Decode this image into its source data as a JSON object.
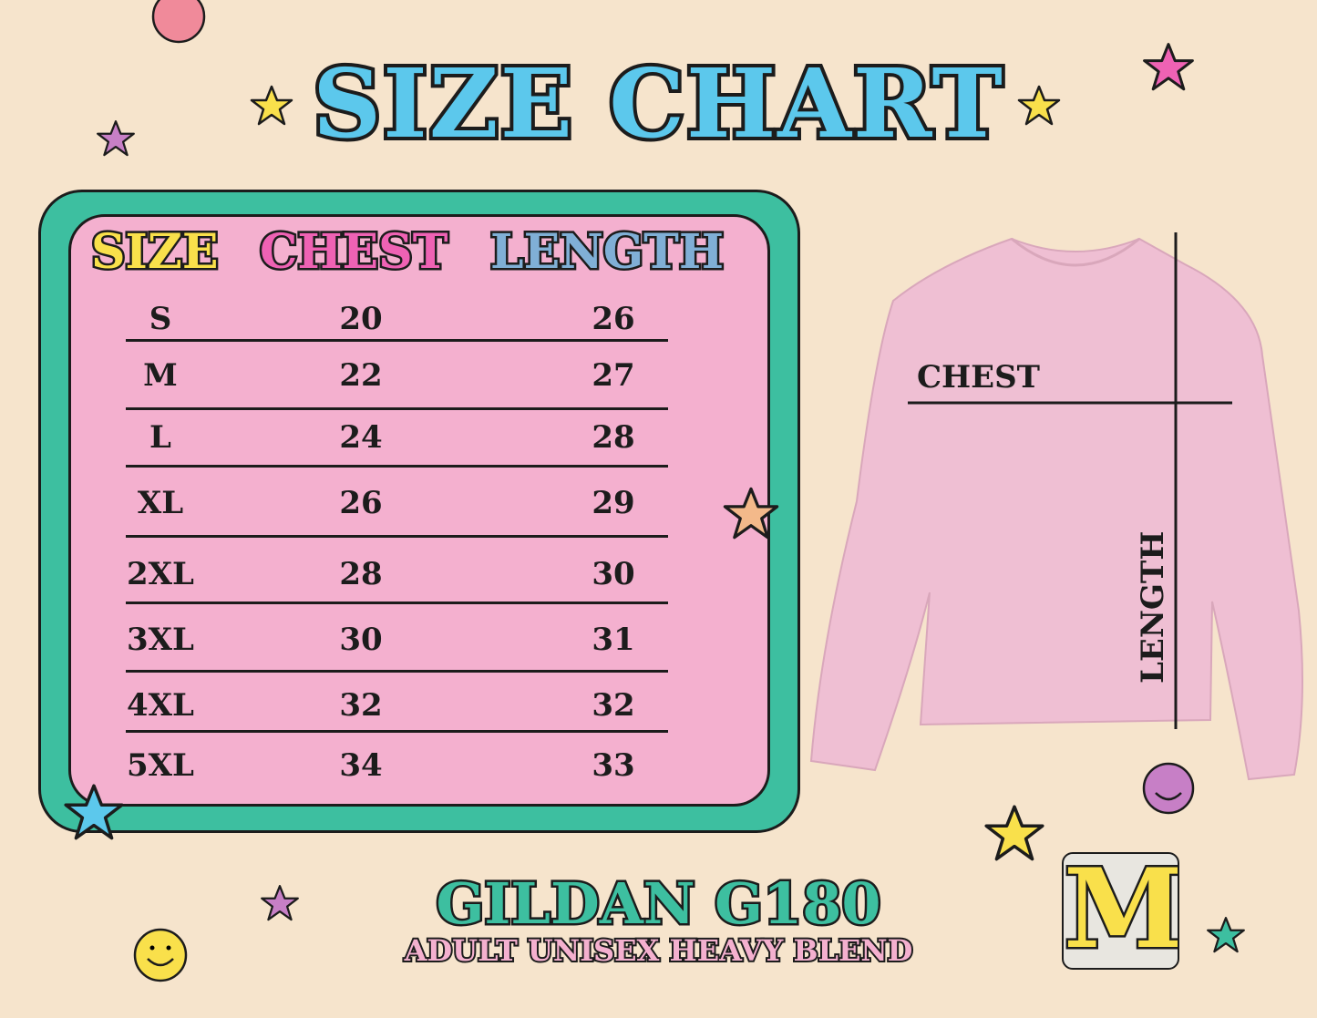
{
  "title": "SIZE CHART",
  "table": {
    "headers": {
      "size": "SIZE",
      "chest": "CHEST",
      "length": "LENGTH"
    },
    "header_colors": {
      "size": "#f9e04b",
      "chest": "#ef62b4",
      "length": "#80afd6"
    },
    "rows": [
      {
        "size": "S",
        "chest": "20",
        "length": "26"
      },
      {
        "size": "M",
        "chest": "22",
        "length": "27"
      },
      {
        "size": "L",
        "chest": "24",
        "length": "28"
      },
      {
        "size": "XL",
        "chest": "26",
        "length": "29"
      },
      {
        "size": "2XL",
        "chest": "28",
        "length": "30"
      },
      {
        "size": "3XL",
        "chest": "30",
        "length": "31"
      },
      {
        "size": "4XL",
        "chest": "32",
        "length": "32"
      },
      {
        "size": "5XL",
        "chest": "34",
        "length": "33"
      }
    ]
  },
  "diagram": {
    "chest_label": "CHEST",
    "length_label": "LENGTH"
  },
  "brand": {
    "model": "GILDAN G180",
    "description": "ADULT UNISEX HEAVY BLEND",
    "logo_letter": "M"
  },
  "colors": {
    "background": "#f6e4cc",
    "teal": "#3dbfa0",
    "pink": "#f4b0cf",
    "title": "#5cc8ec",
    "sweatshirt": "#efbfd3"
  }
}
